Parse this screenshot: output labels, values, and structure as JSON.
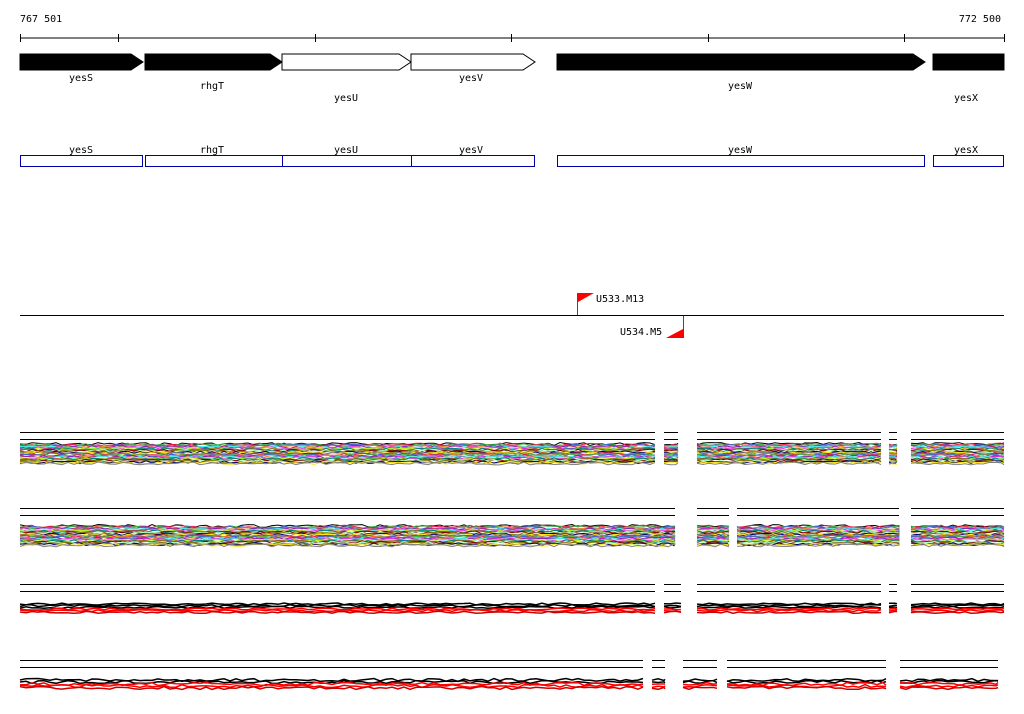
{
  "ruler": {
    "start_label": "767 501",
    "end_label": "772 500"
  },
  "genes": [
    {
      "name": "yesS",
      "strand": "+",
      "filled": true
    },
    {
      "name": "rhgT",
      "strand": "+",
      "filled": true
    },
    {
      "name": "yesU",
      "strand": "+",
      "filled": false
    },
    {
      "name": "yesV",
      "strand": "+",
      "filled": false
    },
    {
      "name": "yesW",
      "strand": "+",
      "filled": true
    },
    {
      "name": "yesX",
      "strand": "+",
      "filled": true
    }
  ],
  "annotation_boxes": [
    "yesS",
    "rhgT",
    "yesU",
    "yesV",
    "yesW",
    "yesX"
  ],
  "markers": [
    {
      "name": "U533.M13",
      "strand": "+"
    },
    {
      "name": "U534.M5",
      "strand": "-"
    }
  ],
  "colors": {
    "gene_fill": "#000000",
    "box_stroke": "#0000aa",
    "marker": "#ff0000",
    "tracks": [
      "#e6194b",
      "#3cb44b",
      "#4363d8",
      "#f58231",
      "#911eb4",
      "#46f0f0",
      "#f032e6",
      "#bcf60c",
      "#008080",
      "#9a6324",
      "#800000",
      "#aaffc3",
      "#808000",
      "#000075",
      "#ffe119",
      "#808080"
    ]
  }
}
